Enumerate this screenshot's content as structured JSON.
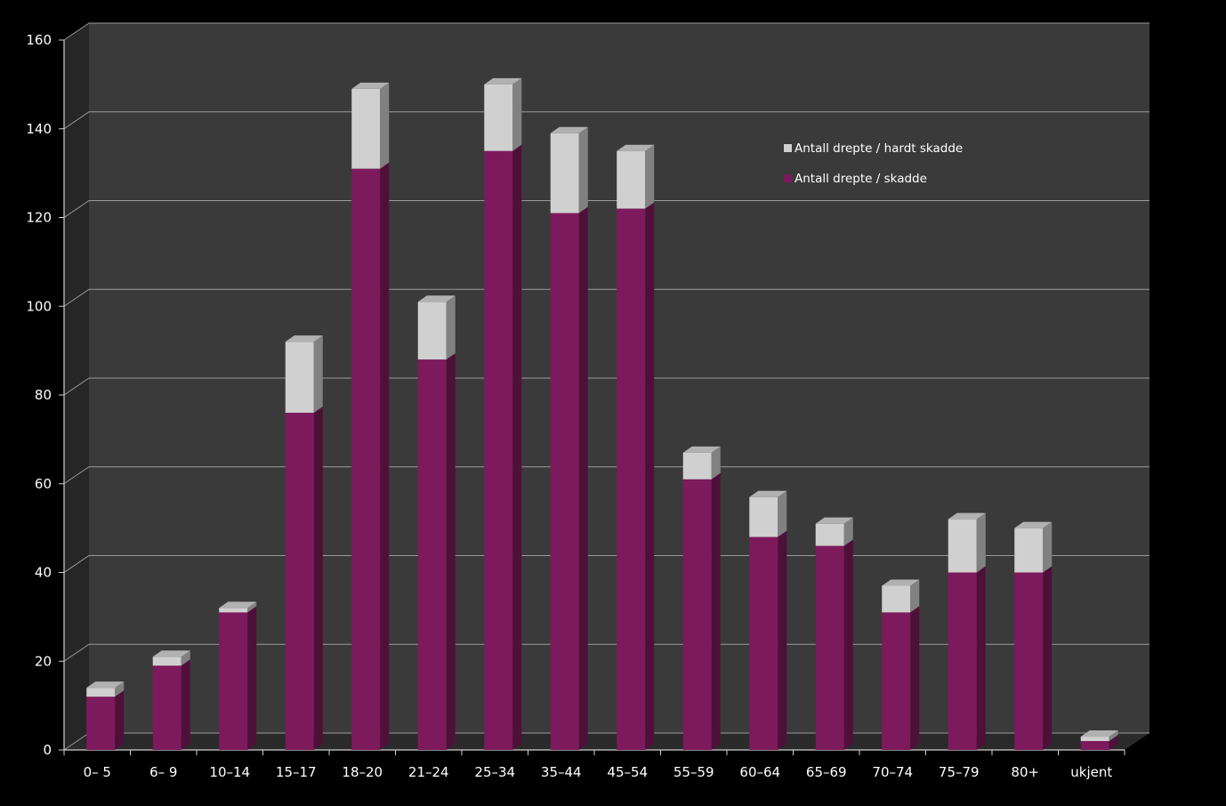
{
  "chart_data": {
    "type": "bar",
    "stacked": true,
    "three_d": true,
    "title": "",
    "xlabel": "",
    "ylabel": "",
    "categories": [
      "0– 5",
      "6– 9",
      "10–14",
      "15–17",
      "18–20",
      "21–24",
      "25–34",
      "35–44",
      "45–54",
      "55–59",
      "60–64",
      "65–69",
      "70–74",
      "75–79",
      "80+",
      "ukjent"
    ],
    "series": [
      {
        "name": "Antall drepte / skadde",
        "color": "#7d1a5c",
        "values": [
          12,
          19,
          31,
          76,
          131,
          88,
          135,
          121,
          122,
          61,
          48,
          46,
          31,
          40,
          40,
          2
        ]
      },
      {
        "name": "Antall drepte / hardt skadde",
        "color": "#d0d0d0",
        "values": [
          2,
          2,
          1,
          16,
          18,
          13,
          15,
          18,
          13,
          6,
          9,
          5,
          6,
          12,
          10,
          1
        ]
      }
    ],
    "ylim": [
      0,
      160
    ],
    "yticks": [
      0,
      20,
      40,
      60,
      80,
      100,
      120,
      140,
      160
    ],
    "grid": true,
    "legend_position": "top-right",
    "legend_order": [
      "Antall drepte / hardt skadde",
      "Antall drepte / skadde"
    ],
    "background_color": "#000000",
    "plot_wall_color": "#3a3a3a",
    "gridline_color": "#9a9a9a",
    "text_color": "#ffffff"
  }
}
